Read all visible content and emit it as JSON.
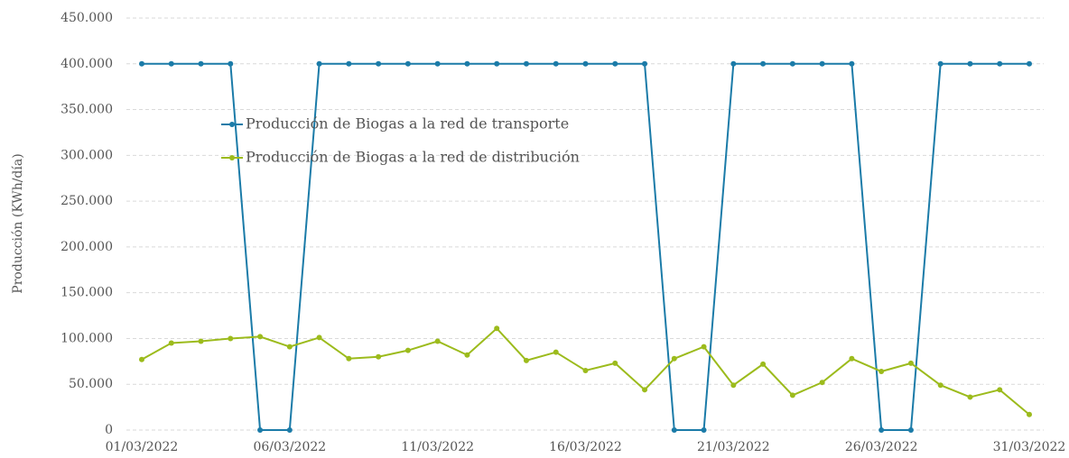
{
  "chart_data": {
    "type": "line",
    "y_label": "Producción (KWh/día)",
    "categories": [
      "01/03/2022",
      null,
      null,
      null,
      null,
      "06/03/2022",
      null,
      null,
      null,
      null,
      "11/03/2022",
      null,
      null,
      null,
      null,
      "16/03/2022",
      null,
      null,
      null,
      null,
      "21/03/2022",
      null,
      null,
      null,
      null,
      "26/03/2022",
      null,
      null,
      null,
      null,
      "31/03/2022"
    ],
    "series": [
      {
        "name": "Producción de Biogas a la red de transporte",
        "color": "#1b7ba8",
        "values": [
          400000,
          400000,
          400000,
          400000,
          0,
          0,
          400000,
          400000,
          400000,
          400000,
          400000,
          400000,
          400000,
          400000,
          400000,
          400000,
          400000,
          400000,
          0,
          0,
          400000,
          400000,
          400000,
          400000,
          400000,
          0,
          0,
          400000,
          400000,
          400000,
          400000
        ]
      },
      {
        "name": "Producción de Biogas a la red de distribución",
        "color": "#9cbb1c",
        "values": [
          77000,
          95000,
          97000,
          100000,
          102000,
          91000,
          101000,
          78000,
          80000,
          87000,
          97000,
          82000,
          111000,
          76000,
          85000,
          65000,
          73000,
          44000,
          78000,
          91000,
          49000,
          72000,
          38000,
          52000,
          78000,
          64000,
          73000,
          49000,
          36000,
          44000,
          17000
        ]
      }
    ],
    "ylim": [
      0,
      450000
    ],
    "yticks": [
      0,
      {
        "value": 50000,
        "label": "50.000"
      },
      {
        "value": 100000,
        "label": "100.000"
      },
      {
        "value": 150000,
        "label": "150.000"
      },
      {
        "value": 200000,
        "label": "200.000"
      },
      {
        "value": 250000,
        "label": "250.000"
      },
      {
        "value": 300000,
        "label": "300.000"
      },
      {
        "value": 350000,
        "label": "350.000"
      },
      {
        "value": 400000,
        "label": "400.000"
      },
      {
        "value": 450000,
        "label": "450.000"
      }
    ],
    "grid": true,
    "legend": "upper left"
  }
}
